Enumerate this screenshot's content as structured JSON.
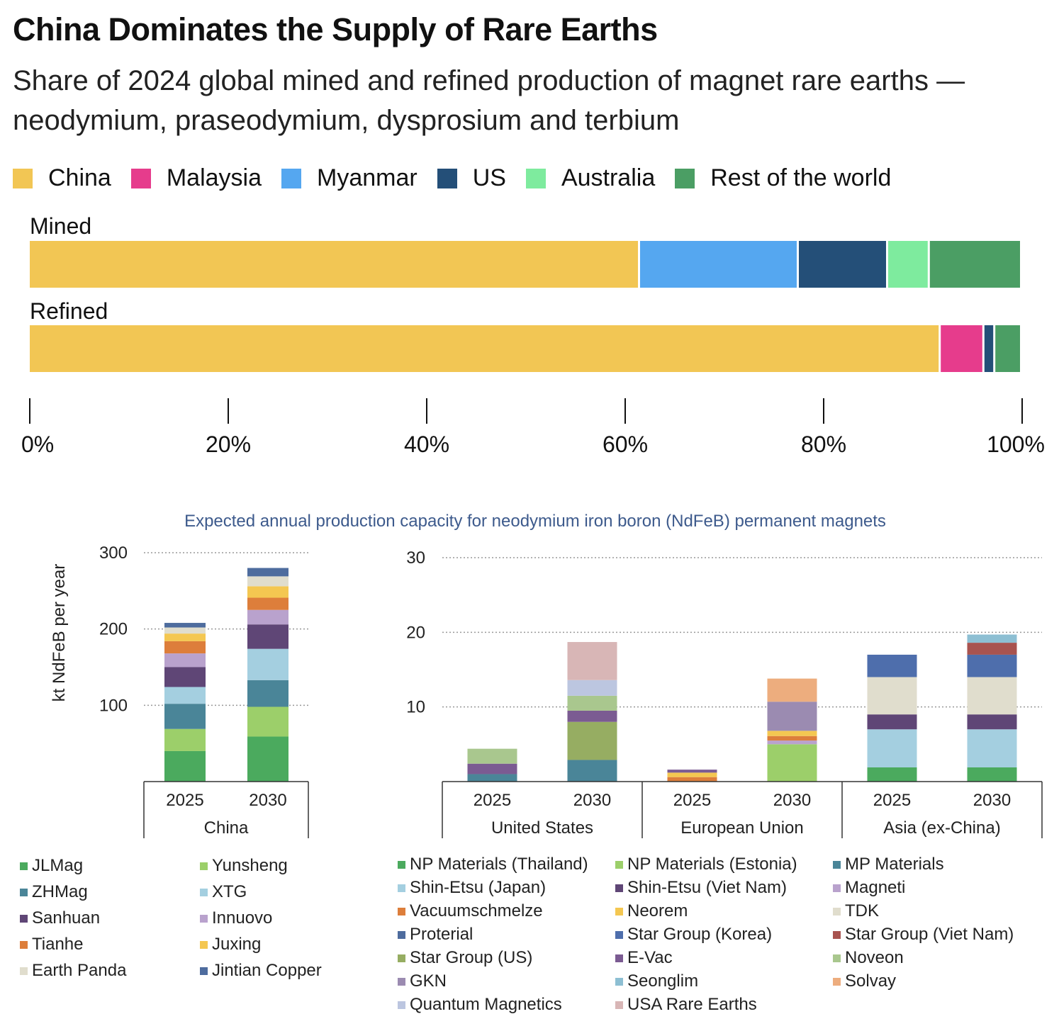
{
  "header": {
    "title": "China Dominates the Supply of Rare Earths",
    "subtitle": "Share of 2024 global mined and refined production of magnet rare earths — neodymium, praseodymium, dysprosium and terbium"
  },
  "chart_data": [
    {
      "type": "bar",
      "orientation": "horizontal-stacked",
      "categories": [
        "Mined",
        "Refined"
      ],
      "series": [
        {
          "name": "China",
          "color": "#F2C654",
          "values": [
            61.5,
            91.8
          ]
        },
        {
          "name": "Malaysia",
          "color": "#E63C8C",
          "values": [
            0,
            4.4
          ]
        },
        {
          "name": "Myanmar",
          "color": "#55A7F0",
          "values": [
            16.0,
            0
          ]
        },
        {
          "name": "US",
          "color": "#244F78",
          "values": [
            9.0,
            1.1
          ]
        },
        {
          "name": "Australia",
          "color": "#7EEB9E",
          "values": [
            4.2,
            0
          ]
        },
        {
          "name": "Rest of the world",
          "color": "#4B9E64",
          "values": [
            9.3,
            2.7
          ]
        }
      ],
      "xlim": [
        0,
        100
      ],
      "xticks": [
        "0%",
        "20%",
        "40%",
        "60%",
        "80%",
        "100%"
      ]
    },
    {
      "type": "bar",
      "orientation": "vertical-stacked",
      "title": "Expected annual production capacity for neodymium iron boron (NdFeB) permanent magnets",
      "ylabel": "kt NdFeB per year",
      "group": "China",
      "categories": [
        "2025",
        "2030"
      ],
      "ylim": [
        0,
        300
      ],
      "yticks": [
        "100",
        "200",
        "300"
      ],
      "series": [
        {
          "name": "JLMag",
          "color": "#4BAA5E",
          "values": [
            40,
            59
          ]
        },
        {
          "name": "Yunsheng",
          "color": "#9CCF6A",
          "values": [
            29,
            39
          ]
        },
        {
          "name": "ZHMag",
          "color": "#4A8598",
          "values": [
            33,
            35
          ]
        },
        {
          "name": "XTG",
          "color": "#A4CFE0",
          "values": [
            22,
            41
          ]
        },
        {
          "name": "Sanhuan",
          "color": "#5F4676",
          "values": [
            26,
            32
          ]
        },
        {
          "name": "Innuovo",
          "color": "#B9A2CD",
          "values": [
            18,
            19
          ]
        },
        {
          "name": "Tianhe",
          "color": "#DD7E3B",
          "values": [
            16,
            16
          ]
        },
        {
          "name": "Juxing",
          "color": "#F4C751",
          "values": [
            10,
            15
          ]
        },
        {
          "name": "Earth Panda",
          "color": "#E0DDCD",
          "values": [
            8,
            13
          ]
        },
        {
          "name": "Jintian Copper",
          "color": "#4E6C9E",
          "values": [
            6,
            11
          ]
        }
      ]
    },
    {
      "type": "bar",
      "orientation": "vertical-stacked",
      "groups": [
        "United States",
        "European Union",
        "Asia (ex-China)"
      ],
      "categories": [
        "2025",
        "2030",
        "2025",
        "2030",
        "2025",
        "2030"
      ],
      "ylim": [
        0,
        30
      ],
      "yticks": [
        "10",
        "20",
        "30"
      ],
      "series": [
        {
          "name": "NP Materials (Thailand)",
          "color": "#4BAA5E",
          "values": [
            0,
            0,
            0,
            0,
            1.9,
            1.9
          ]
        },
        {
          "name": "NP Materials (Estonia)",
          "color": "#9CCF6A",
          "values": [
            0,
            0,
            0,
            5.0,
            0,
            0
          ]
        },
        {
          "name": "MP Materials",
          "color": "#4A8598",
          "values": [
            1.0,
            2.9,
            0,
            0,
            0,
            0
          ]
        },
        {
          "name": "Shin-Etsu (Japan)",
          "color": "#A4CFE0",
          "values": [
            0,
            0,
            0,
            0,
            5.1,
            5.1
          ]
        },
        {
          "name": "Shin-Etsu (Viet Nam)",
          "color": "#5F4676",
          "values": [
            0,
            0,
            0,
            0,
            2.0,
            2.0
          ]
        },
        {
          "name": "Magneti",
          "color": "#B9A2CD",
          "values": [
            0,
            0,
            0,
            0.5,
            0,
            0
          ]
        },
        {
          "name": "Vacuumschmelze",
          "color": "#DD7E3B",
          "values": [
            0,
            0,
            0.6,
            0.6,
            0,
            0
          ]
        },
        {
          "name": "Neorem",
          "color": "#F4C751",
          "values": [
            0,
            0,
            0.6,
            0.7,
            0,
            0
          ]
        },
        {
          "name": "TDK",
          "color": "#E0DDCD",
          "values": [
            0,
            0,
            0,
            0,
            5.0,
            5.0
          ]
        },
        {
          "name": "Proterial",
          "color": "#4E6C9E",
          "values": [
            0,
            0,
            0,
            0,
            0,
            0
          ]
        },
        {
          "name": "Star Group (Korea)",
          "color": "#4E6EAC",
          "values": [
            0,
            0,
            0,
            0,
            3.0,
            3.0
          ]
        },
        {
          "name": "Star Group (Viet Nam)",
          "color": "#A8534F",
          "values": [
            0,
            0,
            0,
            0,
            0,
            1.6
          ]
        },
        {
          "name": "Star Group (US)",
          "color": "#96AD62",
          "values": [
            0,
            5.1,
            0,
            0,
            0,
            0
          ]
        },
        {
          "name": "E-Vac",
          "color": "#7B5B92",
          "values": [
            1.4,
            1.5,
            0.4,
            0,
            0,
            0
          ]
        },
        {
          "name": "Noveon",
          "color": "#A9C78E",
          "values": [
            2.0,
            2.0,
            0,
            0,
            0,
            0
          ]
        },
        {
          "name": "GKN",
          "color": "#9B8BB1",
          "values": [
            0,
            0,
            0,
            3.9,
            0,
            0
          ]
        },
        {
          "name": "Seonglim",
          "color": "#8DBFD3",
          "values": [
            0,
            0,
            0,
            0,
            0,
            1.1
          ]
        },
        {
          "name": "Solvay",
          "color": "#EDAD7E",
          "values": [
            0,
            0,
            0,
            3.1,
            0,
            0
          ]
        },
        {
          "name": "Quantum Magnetics",
          "color": "#BCC6E0",
          "values": [
            0,
            2.1,
            0,
            0,
            0,
            0
          ]
        },
        {
          "name": "USA Rare Earths",
          "color": "#D8B6B6",
          "values": [
            0,
            5.1,
            0,
            0,
            0,
            0
          ]
        }
      ]
    }
  ]
}
